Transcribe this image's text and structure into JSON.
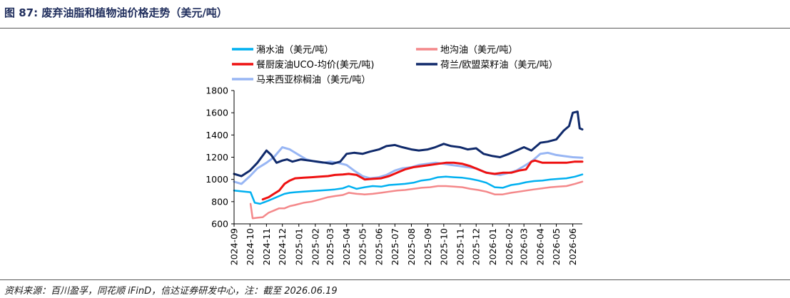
{
  "header": {
    "title": "图 87:  废弃油脂和植物油价格走势（美元/吨）"
  },
  "footer": {
    "source": "资料来源：百川盈孚，同花顺 iFinD，信达证券研发中心，注：截至 2026.06.19"
  },
  "colors": {
    "series": [
      "#00b0f0",
      "#f4888a",
      "#ee1111",
      "#102a6b",
      "#98b6f4"
    ],
    "axis": "#000000"
  },
  "chart_data": {
    "type": "line",
    "title": "",
    "xlabel": "",
    "ylabel": "",
    "ylim": [
      600,
      1800
    ],
    "yticks": [
      600,
      800,
      1000,
      1200,
      1400,
      1600,
      1800
    ],
    "xticks": [
      "2024-09",
      "2024-10",
      "2024-11",
      "2024-12",
      "2025-01",
      "2025-02",
      "2025-03",
      "2025-04",
      "2025-05",
      "2025-06",
      "2025-07",
      "2025-08",
      "2025-09",
      "2025-10",
      "2025-11",
      "2025-12",
      "2026-01",
      "2026-02",
      "2026-03",
      "2026-04",
      "2026-05",
      "2026-06"
    ],
    "xrange": [
      "2024-09-01",
      "2026-06-19"
    ],
    "grid": false,
    "legend_position": "top",
    "series": [
      {
        "name": "潲水油（美元/吨）",
        "color": "#00b0f0",
        "width": 2.5,
        "x": [
          "2024-09-01",
          "2024-09-20",
          "2024-10-02",
          "2024-10-10",
          "2024-10-20",
          "2024-10-25",
          "2024-11-05",
          "2024-11-15",
          "2024-11-25",
          "2024-12-05",
          "2024-12-15",
          "2024-12-25",
          "2025-01-10",
          "2025-01-25",
          "2025-02-10",
          "2025-02-25",
          "2025-03-10",
          "2025-03-25",
          "2025-04-05",
          "2025-04-20",
          "2025-05-05",
          "2025-05-20",
          "2025-06-05",
          "2025-06-20",
          "2025-07-05",
          "2025-07-20",
          "2025-08-05",
          "2025-08-20",
          "2025-09-05",
          "2025-09-20",
          "2025-10-05",
          "2025-10-20",
          "2025-11-05",
          "2025-11-20",
          "2025-12-05",
          "2025-12-20",
          "2026-01-05",
          "2026-01-20",
          "2026-02-05",
          "2026-02-20",
          "2026-03-05",
          "2026-03-20",
          "2026-04-05",
          "2026-04-20",
          "2026-05-05",
          "2026-05-20",
          "2026-06-05",
          "2026-06-19"
        ],
        "values": [
          900,
          890,
          885,
          790,
          780,
          790,
          810,
          830,
          850,
          870,
          880,
          885,
          890,
          895,
          900,
          905,
          910,
          920,
          940,
          915,
          930,
          940,
          935,
          950,
          955,
          960,
          970,
          990,
          1000,
          1020,
          1025,
          1020,
          1015,
          1005,
          990,
          970,
          930,
          925,
          950,
          960,
          975,
          985,
          990,
          1000,
          1005,
          1010,
          1025,
          1045
        ]
      },
      {
        "name": "地沟油（美元/吨）",
        "color": "#f4888a",
        "width": 2.5,
        "x": [
          "2024-09-01",
          "2024-09-20",
          "2024-10-02",
          "2024-10-06",
          "2024-10-15",
          "2024-10-25",
          "2024-11-05",
          "2024-11-15",
          "2024-11-25",
          "2024-12-05",
          "2024-12-15",
          "2024-12-25",
          "2025-01-10",
          "2025-01-25",
          "2025-02-10",
          "2025-02-25",
          "2025-03-10",
          "2025-03-25",
          "2025-04-05",
          "2025-04-20",
          "2025-05-05",
          "2025-05-20",
          "2025-06-05",
          "2025-06-20",
          "2025-07-05",
          "2025-07-20",
          "2025-08-05",
          "2025-08-20",
          "2025-09-05",
          "2025-09-20",
          "2025-10-05",
          "2025-10-20",
          "2025-11-05",
          "2025-11-20",
          "2025-12-05",
          "2025-12-20",
          "2026-01-05",
          "2026-01-20",
          "2026-02-05",
          "2026-02-20",
          "2026-03-05",
          "2026-03-20",
          "2026-04-05",
          "2026-04-20",
          "2026-05-05",
          "2026-05-20",
          "2026-06-05",
          "2026-06-19"
        ],
        "values": [
          null,
          null,
          780,
          650,
          655,
          660,
          700,
          720,
          740,
          740,
          760,
          770,
          790,
          800,
          820,
          840,
          850,
          860,
          880,
          870,
          865,
          870,
          880,
          890,
          900,
          905,
          915,
          925,
          930,
          940,
          940,
          935,
          930,
          915,
          905,
          890,
          865,
          865,
          880,
          890,
          900,
          910,
          920,
          930,
          935,
          940,
          960,
          980
        ]
      },
      {
        "name": "餐厨废油UCO-均价(美元/吨)",
        "color": "#ee1111",
        "width": 3,
        "x": [
          "2024-10-25",
          "2024-11-05",
          "2024-11-15",
          "2024-11-25",
          "2024-12-05",
          "2024-12-15",
          "2024-12-25",
          "2025-01-10",
          "2025-01-25",
          "2025-02-10",
          "2025-02-25",
          "2025-03-10",
          "2025-03-25",
          "2025-04-05",
          "2025-04-20",
          "2025-05-05",
          "2025-05-20",
          "2025-06-05",
          "2025-06-20",
          "2025-07-05",
          "2025-07-20",
          "2025-08-05",
          "2025-08-20",
          "2025-09-05",
          "2025-09-20",
          "2025-10-05",
          "2025-10-20",
          "2025-11-05",
          "2025-11-20",
          "2025-12-05",
          "2025-12-20",
          "2026-01-05",
          "2026-01-20",
          "2026-02-05",
          "2026-02-20",
          "2026-03-05",
          "2026-03-15",
          "2026-03-22",
          "2026-04-05",
          "2026-04-20",
          "2026-05-05",
          "2026-05-20",
          "2026-06-05",
          "2026-06-19"
        ],
        "values": [
          820,
          840,
          870,
          900,
          960,
          990,
          1010,
          1015,
          1020,
          1025,
          1030,
          1040,
          1045,
          1050,
          1040,
          1000,
          1005,
          1010,
          1030,
          1060,
          1090,
          1110,
          1120,
          1130,
          1140,
          1150,
          1150,
          1140,
          1120,
          1090,
          1060,
          1050,
          1060,
          1060,
          1080,
          1090,
          1160,
          1170,
          1150,
          1150,
          1150,
          1150,
          1160,
          1160
        ]
      },
      {
        "name": "荷兰/欧盟菜籽油（美元/吨）",
        "color": "#102a6b",
        "width": 3,
        "x": [
          "2024-09-01",
          "2024-09-15",
          "2024-10-01",
          "2024-10-15",
          "2024-11-01",
          "2024-11-10",
          "2024-11-20",
          "2024-12-01",
          "2024-12-10",
          "2024-12-20",
          "2025-01-05",
          "2025-01-20",
          "2025-02-05",
          "2025-02-20",
          "2025-03-05",
          "2025-03-20",
          "2025-04-01",
          "2025-04-15",
          "2025-05-01",
          "2025-05-15",
          "2025-06-01",
          "2025-06-15",
          "2025-07-01",
          "2025-07-15",
          "2025-08-01",
          "2025-08-15",
          "2025-09-01",
          "2025-09-15",
          "2025-10-01",
          "2025-10-15",
          "2025-11-01",
          "2025-11-15",
          "2025-12-01",
          "2025-12-15",
          "2026-01-01",
          "2026-01-15",
          "2026-02-01",
          "2026-02-15",
          "2026-03-01",
          "2026-03-15",
          "2026-04-01",
          "2026-04-15",
          "2026-05-01",
          "2026-05-15",
          "2026-05-25",
          "2026-06-01",
          "2026-06-10",
          "2026-06-14",
          "2026-06-19"
        ],
        "values": [
          1050,
          1030,
          1080,
          1150,
          1260,
          1220,
          1150,
          1170,
          1180,
          1160,
          1180,
          1170,
          1160,
          1150,
          1140,
          1160,
          1230,
          1240,
          1230,
          1250,
          1270,
          1300,
          1310,
          1290,
          1270,
          1260,
          1270,
          1290,
          1320,
          1300,
          1290,
          1270,
          1280,
          1230,
          1210,
          1200,
          1230,
          1260,
          1290,
          1260,
          1330,
          1340,
          1360,
          1440,
          1480,
          1600,
          1610,
          1460,
          1450
        ]
      },
      {
        "name": "马来西亚棕榈油（美元/吨）",
        "color": "#98b6f4",
        "width": 3,
        "x": [
          "2024-09-01",
          "2024-09-15",
          "2024-10-01",
          "2024-10-15",
          "2024-11-01",
          "2024-11-15",
          "2024-12-01",
          "2024-12-15",
          "2025-01-01",
          "2025-01-15",
          "2025-02-01",
          "2025-02-15",
          "2025-03-01",
          "2025-03-15",
          "2025-04-01",
          "2025-04-15",
          "2025-05-01",
          "2025-05-15",
          "2025-06-01",
          "2025-06-15",
          "2025-07-01",
          "2025-07-15",
          "2025-08-01",
          "2025-08-15",
          "2025-09-01",
          "2025-09-15",
          "2025-10-01",
          "2025-10-15",
          "2025-11-01",
          "2025-11-15",
          "2025-12-01",
          "2025-12-15",
          "2026-01-01",
          "2026-01-15",
          "2026-02-01",
          "2026-02-15",
          "2026-03-01",
          "2026-03-15",
          "2026-04-01",
          "2026-04-15",
          "2026-05-01",
          "2026-05-15",
          "2026-06-01",
          "2026-06-19"
        ],
        "values": [
          980,
          960,
          1030,
          1100,
          1150,
          1200,
          1290,
          1270,
          1220,
          1180,
          1160,
          1150,
          1160,
          1150,
          1130,
          1080,
          1030,
          1010,
          1020,
          1040,
          1080,
          1100,
          1110,
          1130,
          1140,
          1150,
          1140,
          1130,
          1120,
          1110,
          1100,
          1070,
          1050,
          1040,
          1060,
          1080,
          1120,
          1160,
          1230,
          1240,
          1220,
          1210,
          1200,
          1195
        ]
      }
    ]
  }
}
